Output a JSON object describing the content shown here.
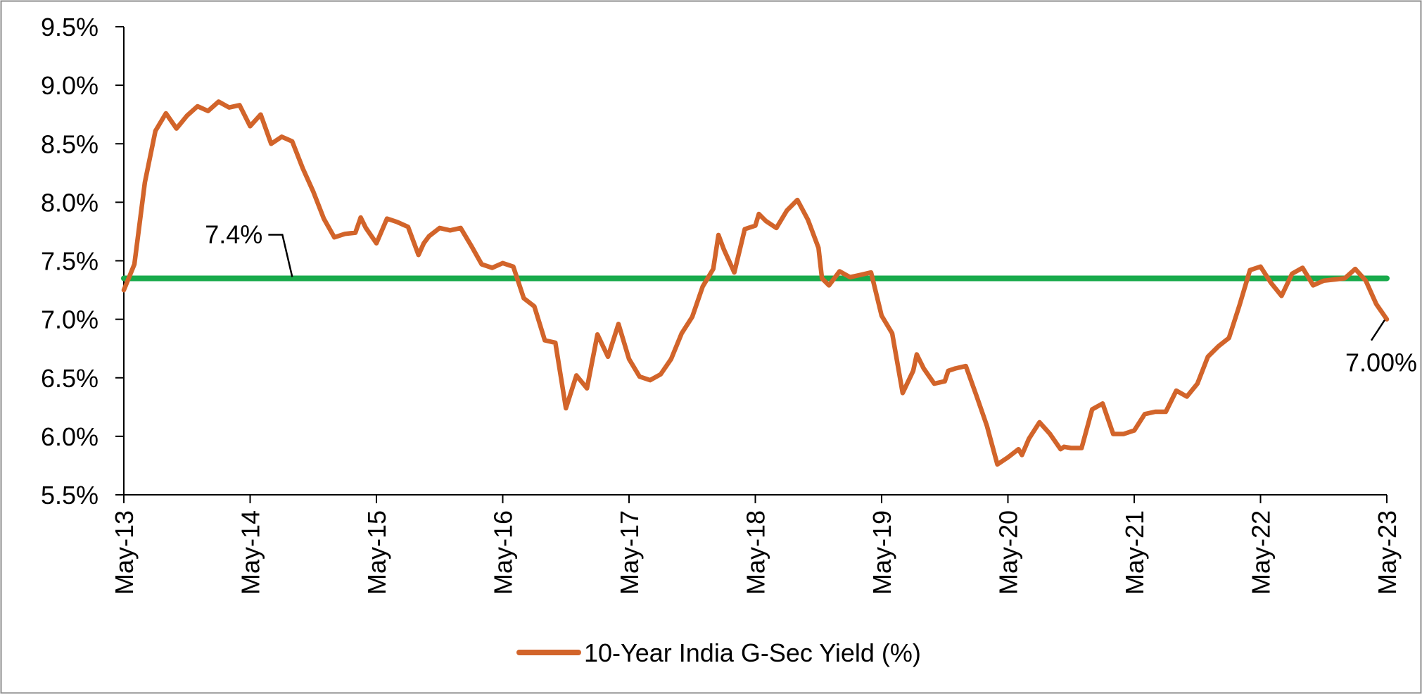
{
  "chart_data": {
    "type": "line",
    "title": "",
    "xlabel": "",
    "ylabel": "",
    "ylim": [
      5.5,
      9.5
    ],
    "xlim": [
      "2013-05",
      "2023-05"
    ],
    "y_ticks": [
      "5.5%",
      "6.0%",
      "6.5%",
      "7.0%",
      "7.5%",
      "8.0%",
      "8.5%",
      "9.0%",
      "9.5%"
    ],
    "x_ticks": [
      "May-13",
      "May-14",
      "May-15",
      "May-16",
      "May-17",
      "May-18",
      "May-19",
      "May-20",
      "May-21",
      "May-22",
      "May-23"
    ],
    "legend_position": "bottom",
    "grid": false,
    "series": [
      {
        "name": "10-Year India G-Sec Yield (%)",
        "color": "#D2642A",
        "points": [
          [
            "2013-05",
            7.25
          ],
          [
            "2013-06",
            7.47
          ],
          [
            "2013-07",
            8.17
          ],
          [
            "2013-08",
            8.61
          ],
          [
            "2013-09",
            8.76
          ],
          [
            "2013-10",
            8.63
          ],
          [
            "2013-11",
            8.74
          ],
          [
            "2013-12",
            8.82
          ],
          [
            "2014-01",
            8.78
          ],
          [
            "2014-02",
            8.86
          ],
          [
            "2014-03",
            8.81
          ],
          [
            "2014-04",
            8.83
          ],
          [
            "2014-05",
            8.65
          ],
          [
            "2014-06",
            8.75
          ],
          [
            "2014-07",
            8.5
          ],
          [
            "2014-08",
            8.56
          ],
          [
            "2014-09",
            8.52
          ],
          [
            "2014-10",
            8.29
          ],
          [
            "2014-11",
            8.09
          ],
          [
            "2014-12",
            7.86
          ],
          [
            "2015-01",
            7.7
          ],
          [
            "2015-02",
            7.73
          ],
          [
            "2015-03",
            7.74
          ],
          [
            "2015-03-15",
            7.87
          ],
          [
            "2015-04",
            7.78
          ],
          [
            "2015-05",
            7.65
          ],
          [
            "2015-06",
            7.86
          ],
          [
            "2015-07",
            7.83
          ],
          [
            "2015-08",
            7.79
          ],
          [
            "2015-09",
            7.55
          ],
          [
            "2015-09-15",
            7.65
          ],
          [
            "2015-10",
            7.71
          ],
          [
            "2015-11",
            7.78
          ],
          [
            "2015-12",
            7.76
          ],
          [
            "2016-01",
            7.78
          ],
          [
            "2016-02",
            7.63
          ],
          [
            "2016-03",
            7.47
          ],
          [
            "2016-04",
            7.44
          ],
          [
            "2016-05",
            7.48
          ],
          [
            "2016-06",
            7.45
          ],
          [
            "2016-07",
            7.18
          ],
          [
            "2016-08",
            7.11
          ],
          [
            "2016-09",
            6.82
          ],
          [
            "2016-10",
            6.8
          ],
          [
            "2016-11",
            6.24
          ],
          [
            "2016-12",
            6.52
          ],
          [
            "2017-01",
            6.41
          ],
          [
            "2017-02",
            6.87
          ],
          [
            "2017-03",
            6.68
          ],
          [
            "2017-04",
            6.96
          ],
          [
            "2017-05",
            6.66
          ],
          [
            "2017-06",
            6.51
          ],
          [
            "2017-07",
            6.48
          ],
          [
            "2017-08",
            6.53
          ],
          [
            "2017-09",
            6.66
          ],
          [
            "2017-10",
            6.88
          ],
          [
            "2017-11",
            7.02
          ],
          [
            "2017-12",
            7.28
          ],
          [
            "2018-01",
            7.43
          ],
          [
            "2018-01-15",
            7.72
          ],
          [
            "2018-02",
            7.6
          ],
          [
            "2018-03",
            7.4
          ],
          [
            "2018-04",
            7.77
          ],
          [
            "2018-05",
            7.8
          ],
          [
            "2018-05-10",
            7.9
          ],
          [
            "2018-06",
            7.84
          ],
          [
            "2018-07",
            7.78
          ],
          [
            "2018-08",
            7.93
          ],
          [
            "2018-09",
            8.02
          ],
          [
            "2018-10",
            7.85
          ],
          [
            "2018-11",
            7.61
          ],
          [
            "2018-11-10",
            7.35
          ],
          [
            "2018-12",
            7.29
          ],
          [
            "2019-01",
            7.41
          ],
          [
            "2019-02",
            7.36
          ],
          [
            "2019-03",
            7.38
          ],
          [
            "2019-04",
            7.4
          ],
          [
            "2019-05",
            7.03
          ],
          [
            "2019-06",
            6.88
          ],
          [
            "2019-07",
            6.37
          ],
          [
            "2019-08",
            6.56
          ],
          [
            "2019-08-10",
            6.7
          ],
          [
            "2019-09",
            6.58
          ],
          [
            "2019-10",
            6.45
          ],
          [
            "2019-11",
            6.47
          ],
          [
            "2019-11-10",
            6.56
          ],
          [
            "2019-12",
            6.58
          ],
          [
            "2020-01",
            6.6
          ],
          [
            "2020-02",
            6.35
          ],
          [
            "2020-03",
            6.09
          ],
          [
            "2020-04",
            5.76
          ],
          [
            "2020-05",
            5.82
          ],
          [
            "2020-06",
            5.89
          ],
          [
            "2020-06-10",
            5.84
          ],
          [
            "2020-07",
            5.98
          ],
          [
            "2020-08",
            6.12
          ],
          [
            "2020-09",
            6.02
          ],
          [
            "2020-10",
            5.89
          ],
          [
            "2020-10-10",
            5.91
          ],
          [
            "2020-11",
            5.9
          ],
          [
            "2020-12",
            5.9
          ],
          [
            "2021-01",
            6.23
          ],
          [
            "2021-02",
            6.28
          ],
          [
            "2021-03",
            6.02
          ],
          [
            "2021-04",
            6.02
          ],
          [
            "2021-05",
            6.05
          ],
          [
            "2021-06",
            6.19
          ],
          [
            "2021-07",
            6.21
          ],
          [
            "2021-08",
            6.21
          ],
          [
            "2021-09",
            6.39
          ],
          [
            "2021-10",
            6.34
          ],
          [
            "2021-11",
            6.45
          ],
          [
            "2021-12",
            6.68
          ],
          [
            "2022-01",
            6.77
          ],
          [
            "2022-02",
            6.84
          ],
          [
            "2022-03",
            7.12
          ],
          [
            "2022-04",
            7.42
          ],
          [
            "2022-05",
            7.45
          ],
          [
            "2022-06",
            7.31
          ],
          [
            "2022-07",
            7.2
          ],
          [
            "2022-08",
            7.39
          ],
          [
            "2022-09",
            7.44
          ],
          [
            "2022-10",
            7.29
          ],
          [
            "2022-11",
            7.33
          ],
          [
            "2022-12",
            7.34
          ],
          [
            "2023-01",
            7.35
          ],
          [
            "2023-02",
            7.43
          ],
          [
            "2023-03",
            7.33
          ],
          [
            "2023-04",
            7.13
          ],
          [
            "2023-05",
            7.0
          ]
        ]
      }
    ],
    "reference_line": {
      "value": 7.35,
      "label": "7.4%",
      "color": "#18AA4B"
    },
    "annotations": [
      {
        "text": "7.4%",
        "target_date": "2014-09",
        "target_value": 7.35
      },
      {
        "text": "7.00%",
        "target_date": "2023-05",
        "target_value": 7.0
      }
    ]
  }
}
